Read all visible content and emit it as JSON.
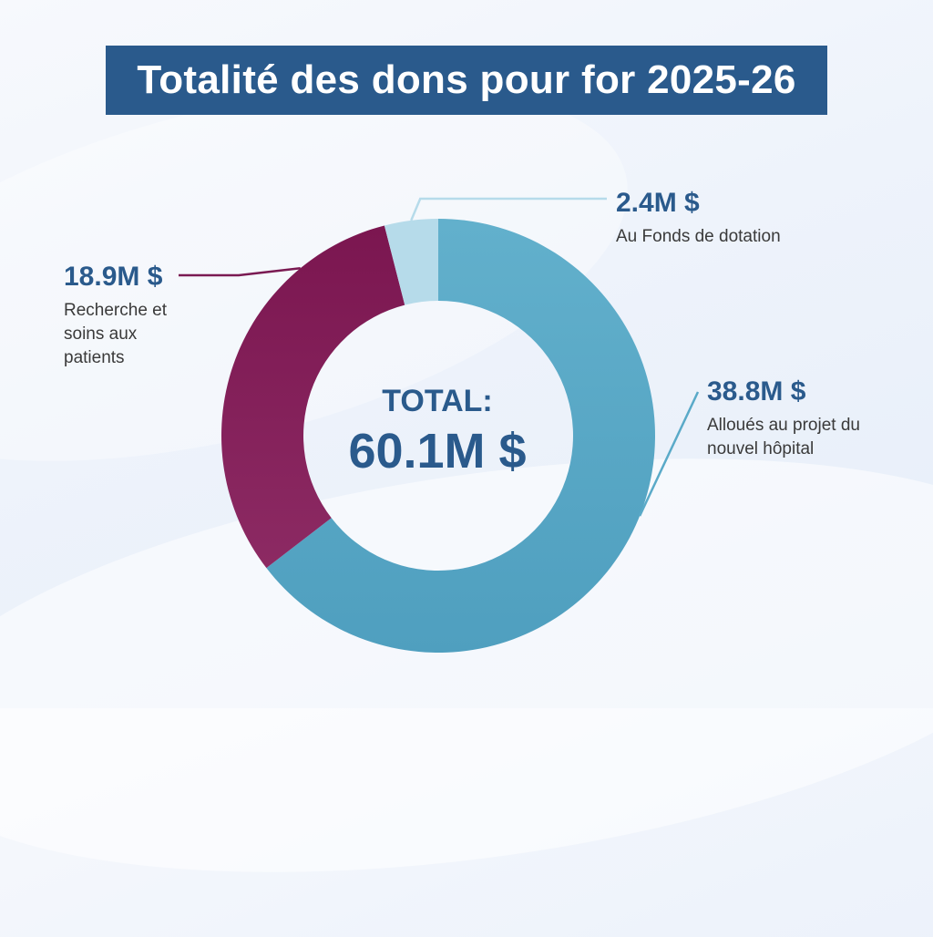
{
  "title": "Totalité des dons pour for 2025-26",
  "center": {
    "label": "TOTAL:",
    "value": "60.1M $"
  },
  "colors": {
    "title_bg": "#2a5a8c",
    "text_accent": "#2a5a8c",
    "slice_fonds": "#b6dbea",
    "slice_hopital": "#5aaac8",
    "slice_recherche": "#7a1a52",
    "leader_fonds": "#b6dbea",
    "leader_hopital": "#5aaac8",
    "leader_recherche": "#7a1a52"
  },
  "chart_data": {
    "type": "pie",
    "title": "Totalité des dons pour for 2025-26",
    "total_label": "TOTAL:",
    "total": "60.1M $",
    "slices": [
      {
        "id": "fonds",
        "value": 2.4,
        "value_label": "2.4M $",
        "description": "Au Fonds de dotation"
      },
      {
        "id": "hopital",
        "value": 38.8,
        "value_label": "38.8M $",
        "description": "Alloués au projet du nouvel hôpital"
      },
      {
        "id": "recherche",
        "value": 18.9,
        "value_label": "18.9M $",
        "description": "Recherche et soins aux patients"
      }
    ]
  }
}
